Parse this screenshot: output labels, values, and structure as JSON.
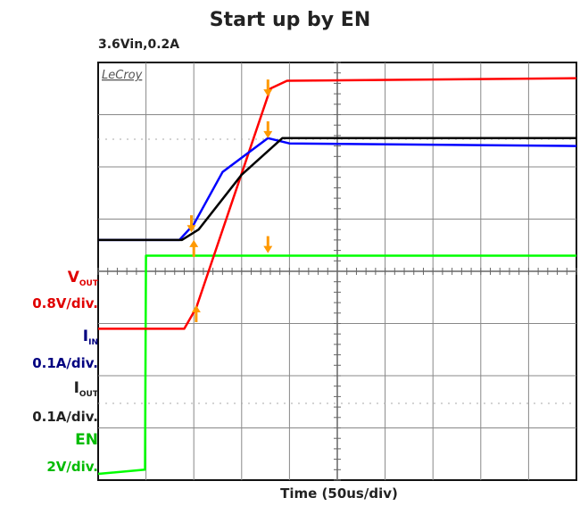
{
  "title": "Start up by EN",
  "subtitle": "3.6Vin,0.2A",
  "brand": "LeCroy",
  "xlabel": "Time (50us/div)",
  "channels": [
    {
      "id": "vout",
      "symbol": "V",
      "sub": "OUT",
      "scale": "0.8V/div.",
      "color": "#ff0000"
    },
    {
      "id": "iin",
      "symbol": "I",
      "sub": "IN",
      "scale": "0.1A/div.",
      "color": "#000080"
    },
    {
      "id": "iout",
      "symbol": "I",
      "sub": "OUT",
      "scale": "0.1A/div.",
      "color": "#222222"
    },
    {
      "id": "en",
      "symbol": "EN",
      "sub": "",
      "scale": "2V/div.",
      "color": "#00bb00"
    }
  ],
  "chart_data": {
    "type": "line",
    "title": "Start up by EN",
    "subtitle": "3.6Vin,0.2A",
    "xlabel": "Time (50us/div)",
    "x_unit": "div",
    "xlim": [
      0,
      10
    ],
    "ylim": [
      0,
      8
    ],
    "grid": true,
    "series": [
      {
        "id": "en",
        "color": "#00ff00",
        "points": [
          [
            0,
            0.12
          ],
          [
            0.98,
            0.2
          ],
          [
            1.0,
            4.3
          ],
          [
            10,
            4.3
          ]
        ]
      },
      {
        "id": "vout",
        "color": "#ff0000",
        "points": [
          [
            0,
            2.9
          ],
          [
            1.8,
            2.9
          ],
          [
            2.05,
            3.3
          ],
          [
            3.6,
            7.5
          ],
          [
            3.95,
            7.65
          ],
          [
            10,
            7.7
          ]
        ]
      },
      {
        "id": "iin",
        "color": "#0000ff",
        "points": [
          [
            0,
            4.6
          ],
          [
            1.7,
            4.6
          ],
          [
            2.0,
            4.9
          ],
          [
            2.6,
            5.9
          ],
          [
            3.55,
            6.55
          ],
          [
            4.0,
            6.45
          ],
          [
            10,
            6.4
          ]
        ]
      },
      {
        "id": "iout",
        "color": "#000000",
        "points": [
          [
            0,
            4.6
          ],
          [
            1.75,
            4.6
          ],
          [
            2.1,
            4.8
          ],
          [
            3.0,
            5.85
          ],
          [
            3.85,
            6.55
          ],
          [
            10,
            6.55
          ]
        ]
      }
    ],
    "markers": [
      {
        "x": 2.0,
        "y": 4.55,
        "dir": "up",
        "color": "#ff9900"
      },
      {
        "x": 2.05,
        "y": 3.3,
        "dir": "up",
        "color": "#ff9900"
      },
      {
        "x": 1.95,
        "y": 4.8,
        "dir": "down",
        "color": "#ff9900"
      },
      {
        "x": 3.55,
        "y": 7.4,
        "dir": "down",
        "color": "#ff9900"
      },
      {
        "x": 3.55,
        "y": 6.6,
        "dir": "down",
        "color": "#ff9900"
      },
      {
        "x": 3.55,
        "y": 4.4,
        "dir": "down",
        "color": "#ff9900"
      }
    ]
  }
}
